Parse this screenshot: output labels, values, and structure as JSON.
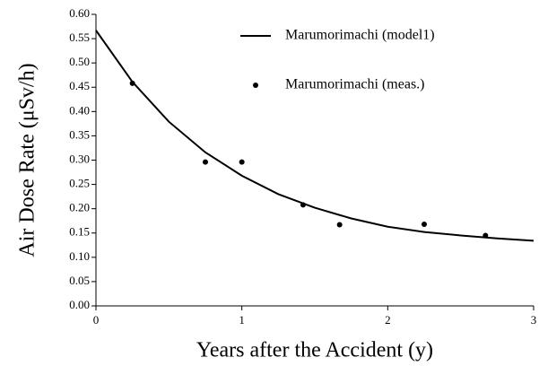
{
  "chart_data": {
    "type": "line",
    "xlabel": "Years after the Accident (y)",
    "ylabel": "Air Dose Rate (μSv/h)",
    "xlim": [
      0,
      3
    ],
    "xticks": [
      0,
      1,
      2,
      3
    ],
    "ylim": [
      0,
      0.6
    ],
    "yticks": [
      {
        "value": 0,
        "label": "0.00"
      },
      {
        "value": 0.05,
        "label": "0.05"
      },
      {
        "value": 0.1,
        "label": "0.10"
      },
      {
        "value": 0.15,
        "label": "0.15"
      },
      {
        "value": 0.2,
        "label": "0.20"
      },
      {
        "value": 0.25,
        "label": "0.25"
      },
      {
        "value": 0.3,
        "label": "0.30"
      },
      {
        "value": 0.35,
        "label": "0.35"
      },
      {
        "value": 0.4,
        "label": "0.40"
      },
      {
        "value": 0.45,
        "label": "0.45"
      },
      {
        "value": 0.5,
        "label": "0.50"
      },
      {
        "value": 0.55,
        "label": "0.55"
      },
      {
        "value": 0.6,
        "label": "0.60"
      }
    ],
    "legend": "upper right",
    "series": [
      {
        "name": "Marumorimachi (model1)",
        "style": "line",
        "color": "#000000",
        "x": [
          0,
          0.25,
          0.5,
          0.75,
          1,
          1.25,
          1.5,
          1.75,
          2,
          2.25,
          2.5,
          2.75,
          3
        ],
        "values": [
          0.567,
          0.461,
          0.379,
          0.316,
          0.268,
          0.23,
          0.202,
          0.18,
          0.163,
          0.152,
          0.145,
          0.139,
          0.134
        ]
      },
      {
        "name": "Marumorimachi (meas.)",
        "style": "marker",
        "color": "#000000",
        "x": [
          0.25,
          0.75,
          1,
          1.42,
          1.67,
          2.25,
          2.67
        ],
        "values": [
          0.458,
          0.296,
          0.296,
          0.208,
          0.167,
          0.168,
          0.145
        ]
      }
    ]
  }
}
